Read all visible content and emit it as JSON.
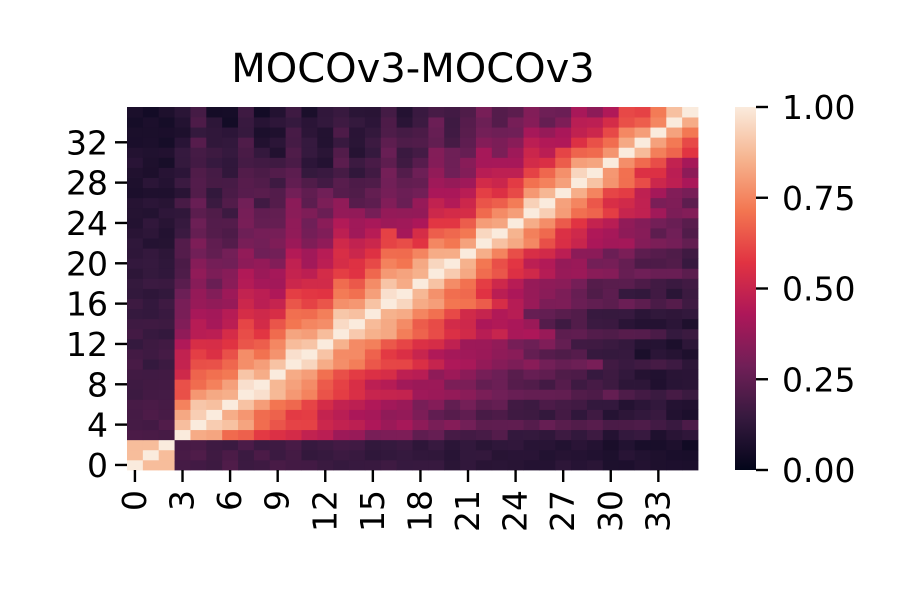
{
  "chart_data": {
    "type": "heatmap",
    "title": "MOCOv3-MOCOv3",
    "xlabel": "",
    "ylabel": "",
    "n_rows": 36,
    "n_cols": 36,
    "x_ticks": [
      0,
      3,
      6,
      9,
      12,
      15,
      18,
      21,
      24,
      27,
      30,
      33
    ],
    "y_ticks": [
      0,
      4,
      8,
      12,
      16,
      20,
      24,
      28,
      32
    ],
    "y_origin": "bottom",
    "value_range": [
      0,
      1
    ],
    "colorbar": {
      "ticks": [
        "0.00",
        "0.25",
        "0.50",
        "0.75",
        "1.00"
      ],
      "placement": "right"
    },
    "colormap": "rocket",
    "colormap_stops": [
      "#03051a",
      "#35193e",
      "#701f57",
      "#ad1759",
      "#e13342",
      "#f37651",
      "#f6b48f",
      "#faebdd"
    ],
    "diagonal_value": 1.0,
    "note_values": "values estimated from cell colours: block 0-2 near 1, diagonal 1, off-diagonal decays with distance, rows/cols 0-2 dark against other layers"
  }
}
